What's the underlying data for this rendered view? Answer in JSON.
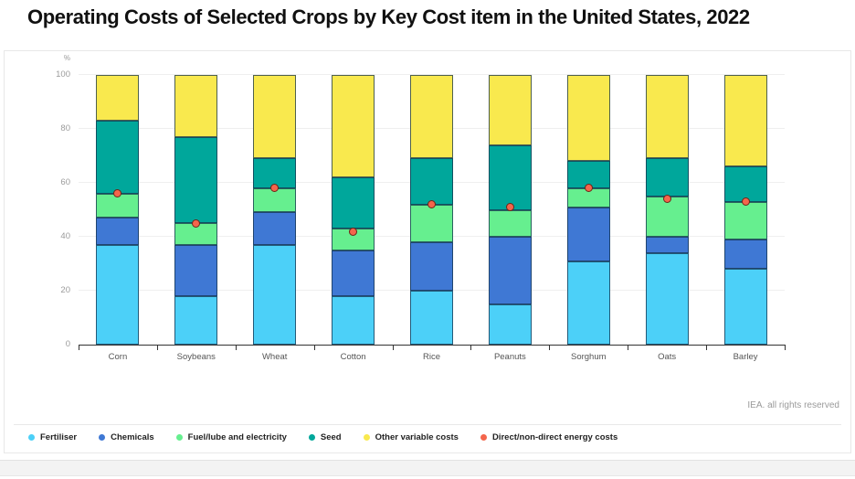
{
  "title": "Operating Costs of Selected Crops by Key Cost item in the United States, 2022",
  "attribution": "IEA. all rights reserved",
  "y_axis": {
    "unit": "%",
    "ticks": [
      0,
      20,
      40,
      60,
      80,
      100
    ],
    "min": 0,
    "max": 100
  },
  "colors": {
    "fertiliser": "#4CD0F8",
    "chemicals": "#3F78D4",
    "fuel_lube_electricity": "#66EF8F",
    "seed": "#00A79B",
    "other_variable_costs": "#F9E94E",
    "energy_dot": "#F4654C",
    "segment_border": "#15334D",
    "axis": "#333333",
    "gridline": "#EFEFEF"
  },
  "chart_data": {
    "type": "bar",
    "stacked": true,
    "title": "Operating Costs of Selected Crops by Key Cost item in the United States, 2022",
    "xlabel": "",
    "ylabel": "%",
    "ylim": [
      0,
      100
    ],
    "grid": true,
    "legend_position": "bottom",
    "categories": [
      "Corn",
      "Soybeans",
      "Wheat",
      "Cotton",
      "Rice",
      "Peanuts",
      "Sorghum",
      "Oats",
      "Barley"
    ],
    "series": [
      {
        "name": "Fertiliser",
        "color": "#4CD0F8",
        "values": [
          37,
          18,
          37,
          18,
          20,
          15,
          31,
          34,
          28
        ]
      },
      {
        "name": "Chemicals",
        "color": "#3F78D4",
        "values": [
          10,
          19,
          12,
          17,
          18,
          25,
          20,
          6,
          11
        ]
      },
      {
        "name": "Fuel/lube and electricity",
        "color": "#66EF8F",
        "values": [
          9,
          8,
          9,
          8,
          14,
          10,
          7,
          15,
          14
        ]
      },
      {
        "name": "Seed",
        "color": "#00A79B",
        "values": [
          27,
          32,
          11,
          19,
          17,
          24,
          10,
          14,
          13
        ]
      },
      {
        "name": "Other variable costs",
        "color": "#F9E94E",
        "values": [
          17,
          23,
          31,
          38,
          31,
          26,
          32,
          31,
          34
        ]
      }
    ],
    "point_series": {
      "name": "Direct/non-direct energy costs",
      "color": "#F4654C",
      "values": [
        56,
        45,
        58,
        42,
        52,
        51,
        58,
        54,
        53
      ]
    }
  }
}
